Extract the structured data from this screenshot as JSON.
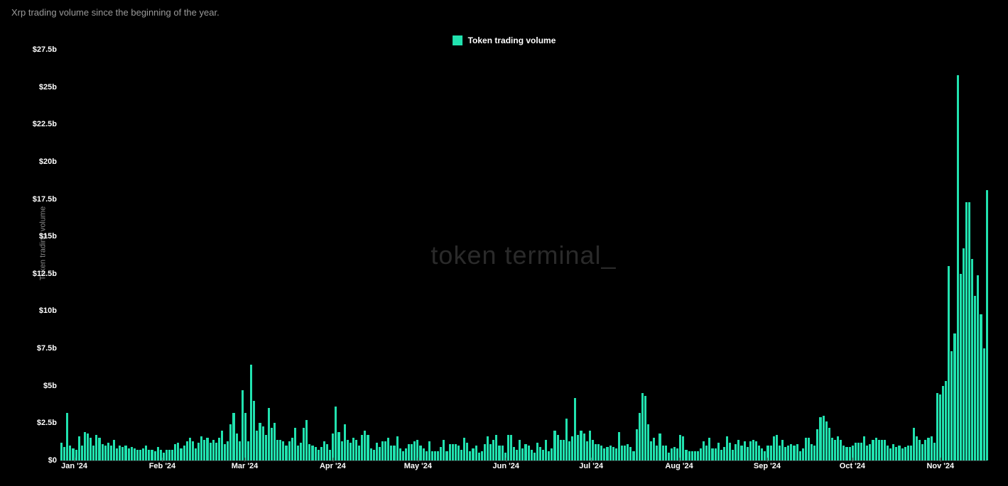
{
  "title": "Xrp trading volume since the beginning of the year.",
  "legend": {
    "label": "Token trading volume",
    "color": "#21e2af"
  },
  "watermark": "token terminal_",
  "chart": {
    "type": "bar",
    "y_axis_title": "Token trading volume",
    "background_color": "#000000",
    "bar_color": "#21e2af",
    "text_color": "#ffffff",
    "muted_text_color": "#9a9a9a",
    "ylim": [
      0,
      27.5
    ],
    "ytick_step": 2.5,
    "y_ticks": [
      {
        "v": 0,
        "label": "$0"
      },
      {
        "v": 2.5,
        "label": "$2.5b"
      },
      {
        "v": 5,
        "label": "$5b"
      },
      {
        "v": 7.5,
        "label": "$7.5b"
      },
      {
        "v": 10,
        "label": "$10b"
      },
      {
        "v": 12.5,
        "label": "$12.5b"
      },
      {
        "v": 15,
        "label": "$15b"
      },
      {
        "v": 17.5,
        "label": "$17.5b"
      },
      {
        "v": 20,
        "label": "$20b"
      },
      {
        "v": 22.5,
        "label": "$22.5b"
      },
      {
        "v": 25,
        "label": "$25b"
      },
      {
        "v": 27.5,
        "label": "$27.5b"
      }
    ],
    "x_ticks": [
      {
        "pos": 0.0,
        "label": "Jan '24"
      },
      {
        "pos": 0.095,
        "label": "Feb '24"
      },
      {
        "pos": 0.184,
        "label": "Mar '24"
      },
      {
        "pos": 0.279,
        "label": "Apr '24"
      },
      {
        "pos": 0.371,
        "label": "May '24"
      },
      {
        "pos": 0.466,
        "label": "Jun '24"
      },
      {
        "pos": 0.558,
        "label": "Jul '24"
      },
      {
        "pos": 0.653,
        "label": "Aug '24"
      },
      {
        "pos": 0.748,
        "label": "Sep '24"
      },
      {
        "pos": 0.84,
        "label": "Oct '24"
      },
      {
        "pos": 0.935,
        "label": "Nov '24"
      }
    ],
    "values": [
      1.2,
      0.9,
      3.2,
      1.0,
      0.8,
      0.7,
      1.6,
      1.0,
      1.9,
      1.8,
      1.5,
      1.0,
      1.7,
      1.5,
      1.1,
      1.0,
      1.2,
      1.0,
      1.4,
      0.8,
      1.0,
      0.9,
      1.0,
      0.8,
      0.9,
      0.8,
      0.7,
      0.7,
      0.8,
      1.0,
      0.7,
      0.7,
      0.6,
      0.9,
      0.7,
      0.5,
      0.7,
      0.7,
      0.7,
      1.1,
      1.2,
      0.8,
      1.0,
      1.3,
      1.5,
      1.3,
      0.8,
      1.2,
      1.6,
      1.4,
      1.5,
      1.2,
      1.4,
      1.2,
      1.5,
      2.0,
      1.1,
      1.3,
      2.4,
      3.2,
      1.8,
      1.3,
      4.7,
      3.2,
      1.3,
      6.4,
      4.0,
      2.0,
      2.5,
      2.3,
      1.7,
      3.5,
      2.2,
      2.5,
      1.4,
      1.4,
      1.3,
      1.0,
      1.3,
      1.5,
      2.2,
      1.0,
      1.2,
      2.2,
      2.7,
      1.1,
      1.0,
      0.9,
      0.7,
      0.9,
      1.3,
      1.1,
      0.7,
      1.8,
      3.6,
      1.9,
      1.3,
      2.4,
      1.4,
      1.2,
      1.5,
      1.4,
      1.0,
      1.7,
      2.0,
      1.7,
      0.8,
      0.7,
      1.2,
      0.9,
      1.3,
      1.3,
      1.5,
      1.0,
      1.0,
      1.6,
      0.8,
      0.6,
      0.8,
      1.1,
      1.1,
      1.3,
      1.4,
      1.0,
      0.8,
      0.6,
      1.3,
      0.6,
      0.6,
      0.6,
      0.9,
      1.4,
      0.6,
      1.1,
      1.1,
      1.1,
      1.0,
      0.7,
      1.5,
      1.2,
      0.6,
      0.8,
      1.0,
      0.5,
      0.6,
      1.1,
      1.6,
      1.1,
      1.4,
      1.7,
      1.0,
      1.0,
      0.5,
      1.7,
      1.7,
      0.9,
      0.7,
      1.4,
      0.8,
      1.1,
      1.0,
      0.7,
      0.5,
      1.2,
      0.9,
      0.7,
      1.4,
      0.6,
      0.8,
      2.0,
      1.7,
      1.4,
      1.4,
      2.8,
      1.3,
      1.6,
      4.2,
      1.7,
      2.0,
      1.8,
      1.3,
      2.0,
      1.4,
      1.1,
      1.1,
      1.0,
      0.8,
      0.9,
      1.0,
      0.9,
      0.8,
      1.9,
      1.0,
      1.0,
      1.1,
      0.9,
      0.6,
      2.1,
      3.2,
      4.5,
      4.3,
      2.4,
      1.3,
      1.5,
      1.0,
      1.8,
      1.0,
      1.0,
      0.5,
      0.8,
      0.9,
      0.8,
      1.7,
      1.6,
      0.7,
      0.6,
      0.6,
      0.6,
      0.6,
      0.8,
      1.3,
      1.0,
      1.5,
      0.8,
      0.8,
      1.2,
      0.7,
      0.9,
      1.6,
      1.2,
      0.7,
      1.1,
      1.4,
      1.0,
      1.3,
      0.9,
      1.3,
      1.4,
      1.3,
      1.0,
      0.8,
      0.6,
      1.0,
      1.0,
      1.6,
      1.7,
      1.0,
      1.4,
      0.9,
      1.0,
      1.1,
      1.0,
      1.1,
      0.6,
      0.8,
      1.5,
      1.5,
      1.1,
      1.0,
      2.1,
      2.9,
      3.0,
      2.6,
      2.2,
      1.5,
      1.4,
      1.6,
      1.4,
      1.0,
      0.9,
      0.9,
      1.0,
      1.2,
      1.2,
      1.2,
      1.6,
      1.0,
      1.1,
      1.4,
      1.5,
      1.4,
      1.4,
      1.4,
      1.0,
      0.8,
      1.1,
      0.9,
      1.0,
      0.8,
      0.9,
      1.0,
      1.0,
      2.2,
      1.6,
      1.4,
      1.1,
      1.4,
      1.5,
      1.6,
      1.2,
      4.5,
      4.4,
      5.0,
      5.3,
      13.0,
      7.3,
      8.5,
      25.8,
      12.5,
      14.2,
      17.3,
      17.3,
      13.5,
      11.0,
      12.4,
      9.8,
      7.5,
      18.1
    ]
  }
}
